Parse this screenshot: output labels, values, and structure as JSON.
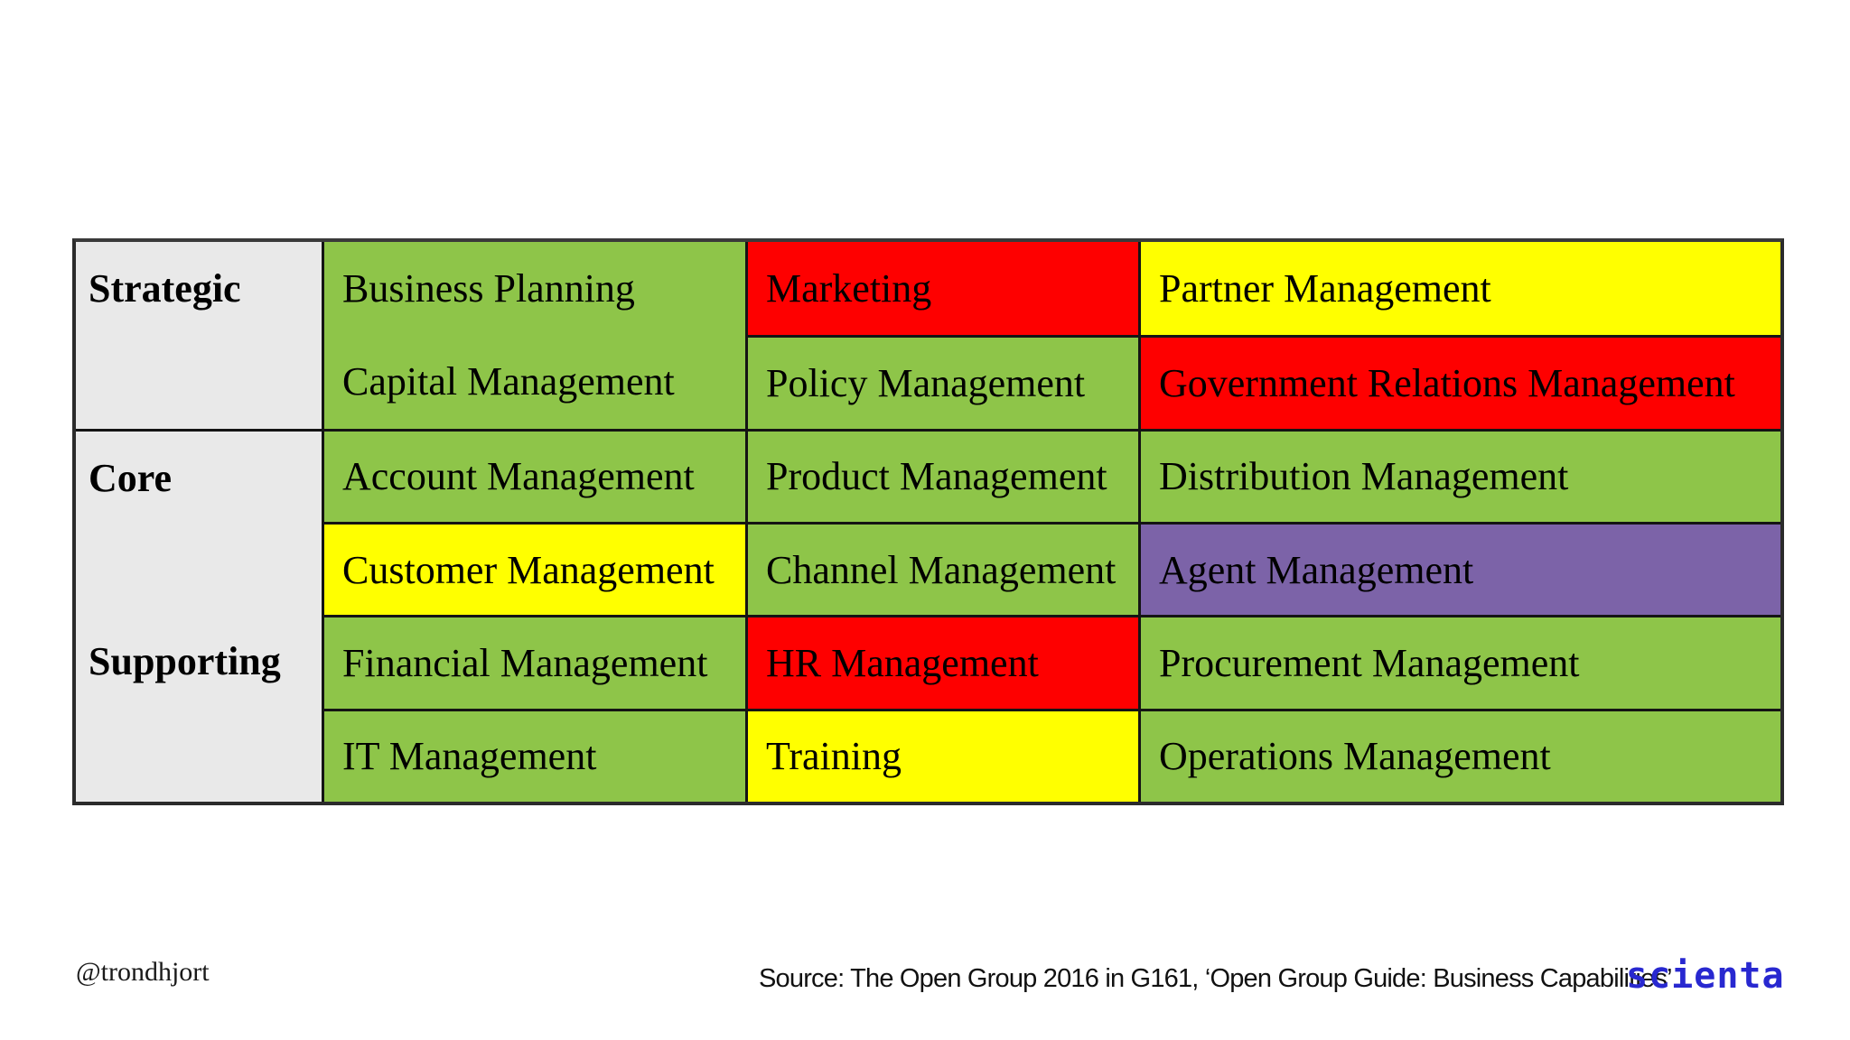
{
  "palette": {
    "green": "#8ec549",
    "red": "#fe0000",
    "yellow": "#ffff00",
    "purple": "#7c63a8",
    "label_gray": "#e9e9e9",
    "border": "#2b2b2b",
    "logo_blue": "#2828d0"
  },
  "matrix": {
    "groups": [
      {
        "label": "Strategic"
      },
      {
        "label": "Core"
      },
      {
        "label": "Supporting"
      }
    ],
    "cells": [
      {
        "label": "Business Planning",
        "color": "green"
      },
      {
        "label": "Marketing",
        "color": "red"
      },
      {
        "label": "Partner Management",
        "color": "yellow"
      },
      {
        "label": "Capital Management",
        "color": "green"
      },
      {
        "label": "Policy Management",
        "color": "green"
      },
      {
        "label": "Government Relations Management",
        "color": "red"
      },
      {
        "label": "Account Management",
        "color": "green"
      },
      {
        "label": "Product Management",
        "color": "green"
      },
      {
        "label": "Distribution Management",
        "color": "green"
      },
      {
        "label": "Customer Management",
        "color": "yellow"
      },
      {
        "label": "Channel Management",
        "color": "green"
      },
      {
        "label": "Agent Management",
        "color": "purple"
      },
      {
        "label": "Financial Management",
        "color": "green"
      },
      {
        "label": "HR Management",
        "color": "red"
      },
      {
        "label": "Procurement Management",
        "color": "green"
      },
      {
        "label": "IT Management",
        "color": "green"
      },
      {
        "label": "Training",
        "color": "yellow"
      },
      {
        "label": "Operations Management",
        "color": "green"
      }
    ]
  },
  "footer": {
    "handle": "@trondhjort",
    "source": "Source: The Open Group 2016 in G161, ‘Open Group Guide: Business Capabilities’",
    "logo_text": "scienta"
  }
}
